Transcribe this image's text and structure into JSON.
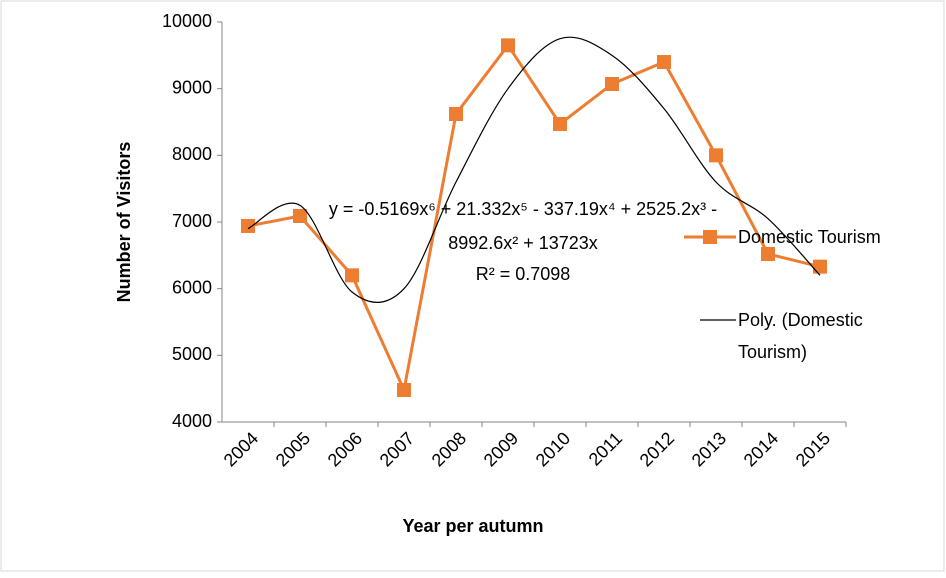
{
  "chart_data": {
    "type": "line",
    "x_label": "Year per autumn",
    "y_label": "Number of Visitors",
    "categories": [
      "2004",
      "2005",
      "2006",
      "2007",
      "2008",
      "2009",
      "2010",
      "2011",
      "2012",
      "2013",
      "2014",
      "2015"
    ],
    "series": [
      {
        "name": "Domestic Tourism",
        "color": "#ed7d31",
        "marker": "square",
        "values": [
          6940,
          7090,
          6200,
          4480,
          8620,
          9650,
          8470,
          9070,
          9400,
          8000,
          6520,
          6330
        ]
      },
      {
        "name": "Poly. (Domestic Tourism)",
        "color": "#000000",
        "marker": "none",
        "values": [
          6900,
          7250,
          5950,
          6000,
          7600,
          9000,
          9750,
          9500,
          8700,
          7600,
          7050,
          6200
        ]
      }
    ],
    "annotation": [
      "y = -0.5169x⁶ + 21.332x⁵ - 337.19x⁴ + 2525.2x³ -",
      "8992.6x² + 13723x",
      "R² = 0.7098"
    ],
    "ylim": [
      4000,
      10000
    ],
    "yticks": [
      4000,
      5000,
      6000,
      7000,
      8000,
      9000,
      10000
    ],
    "legend": "right"
  }
}
